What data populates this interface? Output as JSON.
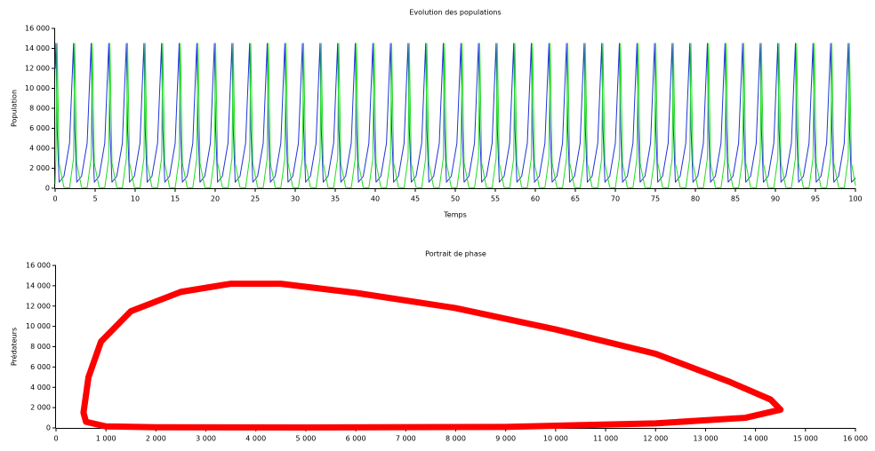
{
  "chart_data": [
    {
      "type": "line",
      "title": "Evolution des populations",
      "x_label": "Temps",
      "y_label": "Population",
      "x": [
        0,
        0.1,
        0.25,
        0.5,
        1.1,
        1.8,
        2.3,
        2.45,
        2.7,
        3.3,
        4,
        4.5,
        4.65,
        4.9,
        5.5,
        6.2,
        6.7,
        6.85,
        7.1,
        7.7,
        8.4,
        8.9,
        9.05,
        9.3,
        9.9,
        10.6,
        11.1,
        11.25,
        11.5,
        12.1,
        12.8,
        13.3,
        13.45,
        13.7,
        14.3,
        15,
        15.5,
        15.65,
        15.9,
        16.5,
        17.2,
        17.7,
        17.85,
        18.1,
        18.7,
        19.4,
        19.9,
        20.05,
        20.3,
        20.9,
        21.6,
        22.1,
        22.25,
        22.5,
        23.1,
        23.8,
        24.3,
        24.45,
        24.7,
        25.3,
        26,
        26.5,
        26.65,
        26.9,
        27.5,
        28.2,
        28.7,
        28.85,
        29.1,
        29.7,
        30.4,
        30.9,
        31.05,
        31.3,
        31.9,
        32.6,
        33.1,
        33.25,
        33.5,
        34.1,
        34.8,
        35.3,
        35.45,
        35.7,
        36.3,
        37,
        37.5,
        37.65,
        37.9,
        38.5,
        39.2,
        39.7,
        39.85,
        40.1,
        40.7,
        41.4,
        41.9,
        42.05,
        42.3,
        42.9,
        43.6,
        44.1,
        44.25,
        44.5,
        45.1,
        45.8,
        46.3,
        46.45,
        46.7,
        47.3,
        48,
        48.5,
        48.65,
        48.9,
        49.5,
        50.2,
        50.7,
        50.85,
        51.1,
        51.7,
        52.4,
        52.9,
        53.05,
        53.3,
        53.9,
        54.6,
        55.1,
        55.25,
        55.5,
        56.1,
        56.8,
        57.3,
        57.45,
        57.7,
        58.3,
        59,
        59.5,
        59.65,
        59.9,
        60.5,
        61.2,
        61.7,
        61.85,
        62.1,
        62.7,
        63.4,
        63.9,
        64.05,
        64.3,
        64.9,
        65.6,
        66.1,
        66.25,
        66.5,
        67.1,
        67.8,
        68.3,
        68.45,
        68.7,
        69.3,
        70,
        70.5,
        70.65,
        70.9,
        71.5,
        72.2,
        72.7,
        72.85,
        73.1,
        73.7,
        74.4,
        74.9,
        75.05,
        75.3,
        75.9,
        76.6,
        77.1,
        77.25,
        77.5,
        78.1,
        78.8,
        79.3,
        79.45,
        79.7,
        80.3,
        81,
        81.5,
        81.65,
        81.9,
        82.5,
        83.2,
        83.7,
        83.85,
        84.1,
        84.7,
        85.4,
        85.9,
        86.05,
        86.3,
        86.9,
        87.6,
        88.1,
        88.25,
        88.5,
        89.1,
        89.8,
        90.3,
        90.45,
        90.7,
        91.3,
        92,
        92.5,
        92.65,
        92.9,
        93.5,
        94.2,
        94.7,
        94.85,
        95.1,
        95.7,
        96.4,
        96.9,
        97.05,
        97.3,
        97.9,
        98.6,
        99.1,
        99.25,
        99.5,
        100
      ],
      "series": [
        {
          "color": "#1f35d6",
          "values": [
            12000,
            14500,
            6000,
            600,
            1200,
            4500,
            14500,
            6000,
            600,
            1200,
            4500,
            14500,
            6000,
            600,
            1200,
            4500,
            14500,
            6000,
            600,
            1200,
            4500,
            14500,
            6000,
            600,
            1200,
            4500,
            14500,
            6000,
            600,
            1200,
            4500,
            14500,
            6000,
            600,
            1200,
            4500,
            14500,
            6000,
            600,
            1200,
            4500,
            14500,
            6000,
            600,
            1200,
            4500,
            14500,
            6000,
            600,
            1200,
            4500,
            14500,
            6000,
            600,
            1200,
            4500,
            14500,
            6000,
            600,
            1200,
            4500,
            14500,
            6000,
            600,
            1200,
            4500,
            14500,
            6000,
            600,
            1200,
            4500,
            14500,
            6000,
            600,
            1200,
            4500,
            14500,
            6000,
            600,
            1200,
            4500,
            14500,
            6000,
            600,
            1200,
            4500,
            14500,
            6000,
            600,
            1200,
            4500,
            14500,
            6000,
            600,
            1200,
            4500,
            14500,
            6000,
            600,
            1200,
            4500,
            14500,
            6000,
            600,
            1200,
            4500,
            14500,
            6000,
            600,
            1200,
            4500,
            14500,
            6000,
            600,
            1200,
            4500,
            14500,
            6000,
            600,
            1200,
            4500,
            14500,
            6000,
            600,
            1200,
            4500,
            14500,
            6000,
            600,
            1200,
            4500,
            14500,
            6000,
            600,
            1200,
            4500,
            14500,
            6000,
            600,
            1200,
            4500,
            14500,
            6000,
            600,
            1200,
            4500,
            14500,
            6000,
            600,
            1200,
            4500,
            14500,
            6000,
            600,
            1200,
            4500,
            14500,
            6000,
            600,
            1200,
            4500,
            14500,
            6000,
            600,
            1200,
            4500,
            14500,
            6000,
            600,
            1200,
            4500,
            14500,
            6000,
            600,
            1200,
            4500,
            14500,
            6000,
            600,
            1200,
            4500,
            14500,
            6000,
            600,
            1200,
            4500,
            14500,
            6000,
            600,
            1200,
            4500,
            14500,
            6000,
            600,
            1200,
            4500,
            14500,
            6000,
            600,
            1200,
            4500,
            14500,
            6000,
            600,
            1200,
            4500,
            14500,
            6000,
            600,
            1200,
            4500,
            14500,
            6000,
            600,
            1200,
            4500,
            14500,
            6000,
            600,
            1200,
            4500,
            14500,
            6000,
            600,
            1200,
            4500,
            14500,
            6000,
            600,
            1000
          ]
        },
        {
          "color": "#22dd22",
          "values": [
            500,
            3000,
            14500,
            2500,
            80,
            30,
            3000,
            14500,
            2500,
            80,
            30,
            3000,
            14500,
            2500,
            80,
            30,
            3000,
            14500,
            2500,
            80,
            30,
            3000,
            14500,
            2500,
            80,
            30,
            3000,
            14500,
            2500,
            80,
            30,
            3000,
            14500,
            2500,
            80,
            30,
            3000,
            14500,
            2500,
            80,
            30,
            3000,
            14500,
            2500,
            80,
            30,
            3000,
            14500,
            2500,
            80,
            30,
            3000,
            14500,
            2500,
            80,
            30,
            3000,
            14500,
            2500,
            80,
            30,
            3000,
            14500,
            2500,
            80,
            30,
            3000,
            14500,
            2500,
            80,
            30,
            3000,
            14500,
            2500,
            80,
            30,
            3000,
            14500,
            2500,
            80,
            30,
            3000,
            14500,
            2500,
            80,
            30,
            3000,
            14500,
            2500,
            80,
            30,
            3000,
            14500,
            2500,
            80,
            30,
            3000,
            14500,
            2500,
            80,
            30,
            3000,
            14500,
            2500,
            80,
            30,
            3000,
            14500,
            2500,
            80,
            30,
            3000,
            14500,
            2500,
            80,
            30,
            3000,
            14500,
            2500,
            80,
            30,
            3000,
            14500,
            2500,
            80,
            30,
            3000,
            14500,
            2500,
            80,
            30,
            3000,
            14500,
            2500,
            80,
            30,
            3000,
            14500,
            2500,
            80,
            30,
            3000,
            14500,
            2500,
            80,
            30,
            3000,
            14500,
            2500,
            80,
            30,
            3000,
            14500,
            2500,
            80,
            30,
            3000,
            14500,
            2500,
            80,
            30,
            3000,
            14500,
            2500,
            80,
            30,
            3000,
            14500,
            2500,
            80,
            30,
            3000,
            14500,
            2500,
            80,
            30,
            3000,
            14500,
            2500,
            80,
            30,
            3000,
            14500,
            2500,
            80,
            30,
            3000,
            14500,
            2500,
            80,
            30,
            3000,
            14500,
            2500,
            80,
            30,
            3000,
            14500,
            2500,
            80,
            30,
            3000,
            14500,
            2500,
            80,
            30,
            3000,
            14500,
            2500,
            80,
            30,
            3000,
            14500,
            2500,
            80,
            30,
            3000,
            14500,
            2500,
            80,
            30,
            3000,
            14500,
            2500,
            80,
            30,
            3000,
            14500,
            2500,
            300
          ]
        }
      ],
      "xlim": [
        0,
        100
      ],
      "xticks": [
        0,
        5,
        10,
        15,
        20,
        25,
        30,
        35,
        40,
        45,
        50,
        55,
        60,
        65,
        70,
        75,
        80,
        85,
        90,
        95,
        100
      ],
      "ylim": [
        0,
        16000
      ],
      "yticks": [
        0,
        {
          "value": 2000,
          "label": "2 000"
        },
        {
          "value": 4000,
          "label": "4 000"
        },
        {
          "value": 6000,
          "label": "6 000"
        },
        {
          "value": 8000,
          "label": "8 000"
        },
        {
          "value": 10000,
          "label": "10 000"
        },
        {
          "value": 12000,
          "label": "12 000"
        },
        {
          "value": 14000,
          "label": "14 000"
        },
        {
          "value": 16000,
          "label": "16 000"
        }
      ]
    },
    {
      "type": "line",
      "title": "Portrait de phase",
      "y_label": "Prédateurs",
      "x": [
        550,
        600,
        1000,
        2000,
        5000,
        9000,
        12000,
        13800,
        14500,
        14300,
        13500,
        12000,
        10000,
        8000,
        6000,
        4500,
        3500,
        2500,
        1500,
        900,
        650,
        550
      ],
      "series": [
        {
          "color": "#ff0000",
          "values": [
            1500,
            600,
            150,
            60,
            40,
            100,
            450,
            1000,
            1800,
            2800,
            4500,
            7300,
            9700,
            11800,
            13300,
            14200,
            14200,
            13400,
            11500,
            8500,
            5000,
            1500
          ]
        }
      ],
      "xlim": [
        0,
        16000
      ],
      "xticks": [
        0,
        {
          "value": 1000,
          "label": "1 000"
        },
        {
          "value": 2000,
          "label": "2 000"
        },
        {
          "value": 3000,
          "label": "3 000"
        },
        {
          "value": 4000,
          "label": "4 000"
        },
        {
          "value": 5000,
          "label": "5 000"
        },
        {
          "value": 6000,
          "label": "6 000"
        },
        {
          "value": 7000,
          "label": "7 000"
        },
        {
          "value": 8000,
          "label": "8 000"
        },
        {
          "value": 9000,
          "label": "9 000"
        },
        {
          "value": 10000,
          "label": "10 000"
        },
        {
          "value": 11000,
          "label": "11 000"
        },
        {
          "value": 12000,
          "label": "12 000"
        },
        {
          "value": 13000,
          "label": "13 000"
        },
        {
          "value": 14000,
          "label": "14 000"
        },
        {
          "value": 15000,
          "label": "15 000"
        },
        {
          "value": 16000,
          "label": "16 000"
        }
      ],
      "ylim": [
        0,
        16000
      ],
      "yticks": [
        0,
        {
          "value": 2000,
          "label": "2 000"
        },
        {
          "value": 4000,
          "label": "4 000"
        },
        {
          "value": 6000,
          "label": "6 000"
        },
        {
          "value": 8000,
          "label": "8 000"
        },
        {
          "value": 10000,
          "label": "10 000"
        },
        {
          "value": 12000,
          "label": "12 000"
        },
        {
          "value": 14000,
          "label": "14 000"
        },
        {
          "value": 16000,
          "label": "16 000"
        }
      ]
    }
  ]
}
